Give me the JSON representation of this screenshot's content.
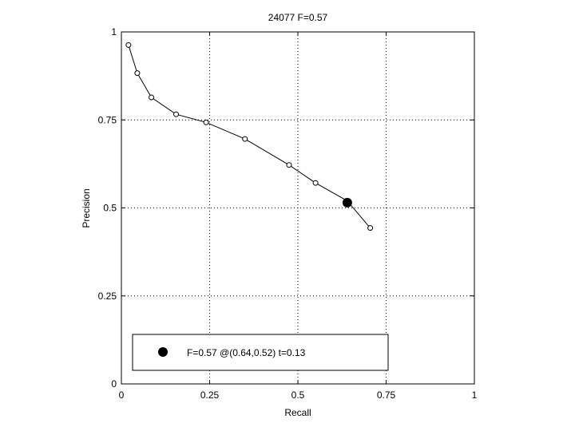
{
  "chart_data": {
    "type": "line",
    "title": "24077 F=0.57",
    "xlabel": "Recall",
    "ylabel": "Precision",
    "xlim": [
      0,
      1
    ],
    "ylim": [
      0,
      1
    ],
    "xticks": [
      0,
      0.25,
      0.5,
      0.75,
      1
    ],
    "xtick_labels": [
      "0",
      "0.25",
      "0.5",
      "0.75",
      "1"
    ],
    "yticks": [
      0,
      0.25,
      0.5,
      0.75,
      1
    ],
    "ytick_labels": [
      "0",
      "0.25",
      "0.5",
      "0.75",
      "1"
    ],
    "grid": true,
    "legend_position": "bottom",
    "series": [
      {
        "x": [
          0.02,
          0.045,
          0.085,
          0.155,
          0.24,
          0.35,
          0.475,
          0.55,
          0.64,
          0.705
        ],
        "y": [
          0.963,
          0.883,
          0.814,
          0.766,
          0.743,
          0.696,
          0.622,
          0.571,
          0.52,
          0.443
        ],
        "marker": "open-circle"
      }
    ],
    "highlight_point": {
      "x": 0.64,
      "y": 0.515,
      "label": "F=0.57 @(0.64,0.52) t=0.13"
    }
  }
}
